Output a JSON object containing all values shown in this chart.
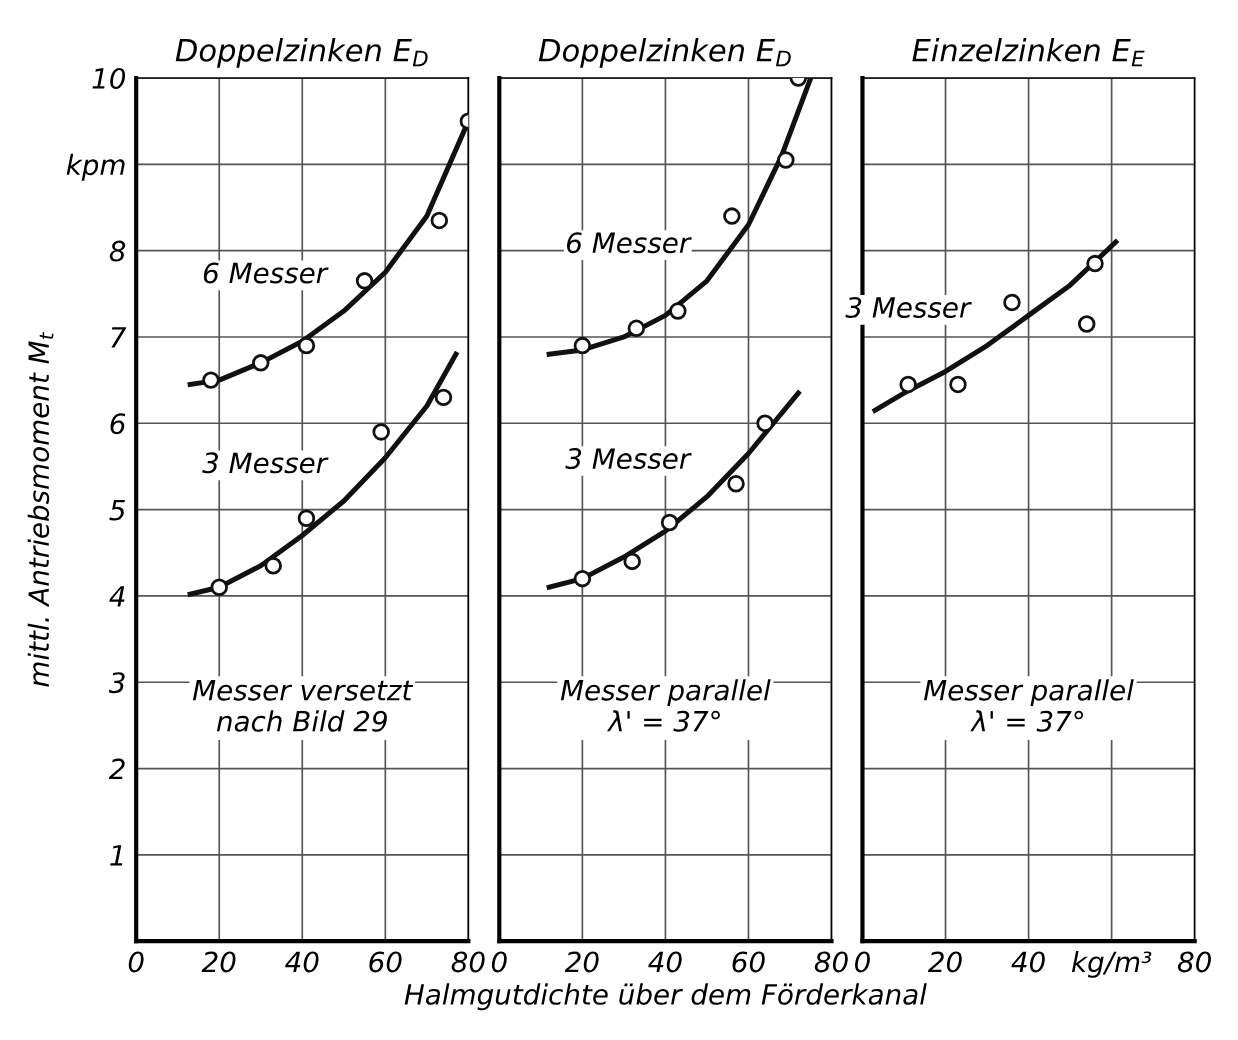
{
  "chart_data": [
    {
      "type": "line",
      "title": "Doppelzinken E$_{D}$",
      "ylabel": "mittl. Antriebsmoment M$_{t}$",
      "xlim": [
        0,
        80
      ],
      "ylim": [
        0,
        10
      ],
      "xticks": [
        0,
        20,
        40,
        60,
        80
      ],
      "yticks": [
        1,
        2,
        3,
        4,
        5,
        6,
        7,
        8,
        {
          "value": 9,
          "label": "kpm"
        },
        10
      ],
      "grid": true,
      "annotations": [
        "Messer versetzt\nnach Bild 29"
      ],
      "series": [
        {
          "name": "6 Messer",
          "color": "#111111",
          "x": [
            13,
            20,
            30,
            40,
            50,
            60,
            70,
            80
          ],
          "values": [
            6.45,
            6.5,
            6.7,
            6.95,
            7.3,
            7.75,
            8.4,
            9.5
          ]
        },
        {
          "name": "3 Messer",
          "color": "#111111",
          "x": [
            13,
            20,
            30,
            40,
            50,
            60,
            70,
            77
          ],
          "values": [
            4.02,
            4.1,
            4.35,
            4.7,
            5.1,
            5.6,
            6.2,
            6.8
          ]
        },
        {
          "type": "scatter",
          "marker": "circle",
          "color": "#111111",
          "x": [
            18,
            30,
            41,
            55,
            73,
            80
          ],
          "values": [
            6.5,
            6.7,
            6.9,
            7.65,
            8.35,
            9.5
          ]
        },
        {
          "type": "scatter",
          "marker": "circle",
          "color": "#111111",
          "x": [
            20,
            33,
            41,
            59,
            74
          ],
          "values": [
            4.1,
            4.35,
            4.9,
            5.9,
            6.3
          ]
        }
      ]
    },
    {
      "type": "line",
      "title": "Doppelzinken E$_{D}$",
      "xlabel": "Halmgutdichte über dem Förderkanal",
      "xlim": [
        0,
        80
      ],
      "ylim": [
        0,
        10
      ],
      "xticks": [
        0,
        20,
        40,
        60,
        80
      ],
      "yticks": [
        1,
        2,
        3,
        4,
        5,
        6,
        7,
        8,
        9,
        10
      ],
      "tick_labels": "x",
      "grid": true,
      "annotations": [
        "Messer parallel\nλ' = 37°"
      ],
      "series": [
        {
          "name": "6 Messer",
          "color": "#111111",
          "x": [
            12,
            20,
            30,
            40,
            50,
            60,
            68,
            75
          ],
          "values": [
            6.8,
            6.85,
            7.0,
            7.25,
            7.65,
            8.3,
            9.1,
            10.0
          ]
        },
        {
          "name": "3 Messer",
          "color": "#111111",
          "x": [
            12,
            20,
            30,
            40,
            50,
            60,
            66,
            72
          ],
          "values": [
            4.1,
            4.2,
            4.45,
            4.75,
            5.15,
            5.65,
            6.0,
            6.35
          ]
        },
        {
          "type": "scatter",
          "marker": "circle",
          "color": "#111111",
          "x": [
            20,
            33,
            43,
            56,
            69,
            72
          ],
          "values": [
            6.9,
            7.1,
            7.3,
            8.4,
            9.05,
            10.0
          ]
        },
        {
          "type": "scatter",
          "marker": "circle",
          "color": "#111111",
          "x": [
            20,
            32,
            41,
            57,
            64
          ],
          "values": [
            4.2,
            4.4,
            4.85,
            5.3,
            6.0
          ]
        }
      ]
    },
    {
      "type": "line",
      "title": "Einzelzinken E$_{E}$",
      "xlim": [
        0,
        80
      ],
      "ylim": [
        0,
        10
      ],
      "xticks": [
        0,
        20,
        40,
        {
          "value": 60,
          "label": "kg/m³"
        },
        80
      ],
      "yticks": [
        1,
        2,
        3,
        4,
        5,
        6,
        7,
        8,
        9,
        10
      ],
      "tick_labels": "x",
      "grid": true,
      "annotations": [
        "Messer parallel\nλ' = 37°"
      ],
      "series": [
        {
          "name": "3 Messer",
          "color": "#111111",
          "x": [
            3,
            10,
            20,
            30,
            40,
            50,
            61
          ],
          "values": [
            6.15,
            6.35,
            6.6,
            6.9,
            7.25,
            7.6,
            8.1
          ]
        },
        {
          "type": "scatter",
          "marker": "circle",
          "color": "#111111",
          "x": [
            11,
            23,
            36,
            54,
            56
          ],
          "values": [
            6.45,
            6.45,
            7.4,
            7.15,
            7.85
          ]
        }
      ]
    }
  ]
}
